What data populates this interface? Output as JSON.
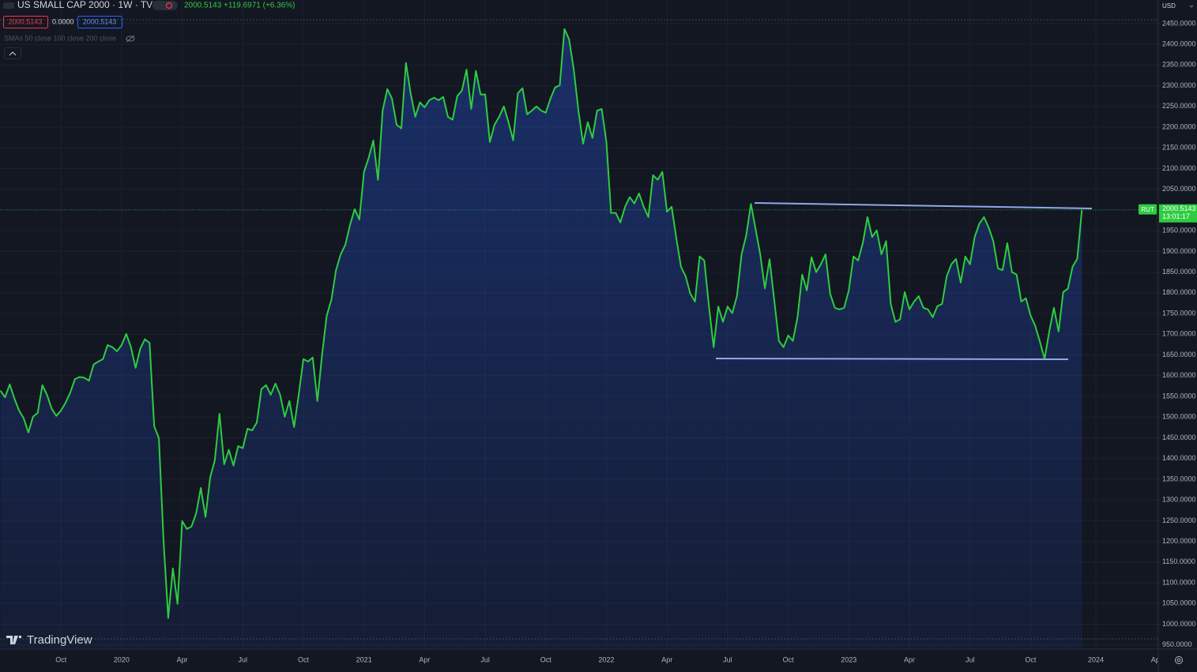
{
  "header": {
    "title": "US SMALL CAP 2000 · 1W · TVC",
    "change": "2000.5143 +119.6971 (+6.36%)",
    "sell": "2000.5143",
    "spread": "0.0000",
    "buy": "2000.5143",
    "indicator": "SMAs 50 close 100 close 200 close",
    "logo": "TradingView",
    "currency": "USD",
    "symbol_tag": "RUT",
    "price_tag": "2000.5143",
    "countdown": "13:01:17"
  },
  "chart_data": {
    "type": "area",
    "color": "#2ecc40",
    "categories": [
      null,
      null,
      null,
      null,
      null,
      null,
      null,
      null,
      null,
      null,
      null,
      null,
      null,
      "Oct",
      null,
      null,
      null,
      null,
      null,
      null,
      null,
      null,
      null,
      null,
      null,
      null,
      "2020",
      null,
      null,
      null,
      null,
      null,
      null,
      null,
      null,
      null,
      null,
      null,
      null,
      "Apr",
      null,
      null,
      null,
      null,
      null,
      null,
      null,
      null,
      null,
      null,
      null,
      null,
      "Jul",
      null,
      null,
      null,
      null,
      null,
      null,
      null,
      null,
      null,
      null,
      null,
      null,
      "Oct",
      null,
      null,
      null,
      null,
      null,
      null,
      null,
      null,
      null,
      null,
      null,
      null,
      "2021",
      null,
      null,
      null,
      null,
      null,
      null,
      null,
      null,
      null,
      null,
      null,
      null,
      "Apr",
      null,
      null,
      null,
      null,
      null,
      null,
      null,
      null,
      null,
      null,
      null,
      null,
      "Jul",
      null,
      null,
      null,
      null,
      null,
      null,
      null,
      null,
      null,
      null,
      null,
      null,
      "Oct",
      null,
      null,
      null,
      null,
      null,
      null,
      null,
      null,
      null,
      null,
      null,
      null,
      "2022",
      null,
      null,
      null,
      null,
      null,
      null,
      null,
      null,
      null,
      null,
      null,
      null,
      "Apr",
      null,
      null,
      null,
      null,
      null,
      null,
      null,
      null,
      null,
      null,
      null,
      null,
      "Jul",
      null,
      null,
      null,
      null,
      null,
      null,
      null,
      null,
      null,
      null,
      null,
      null,
      "Oct",
      null,
      null,
      null,
      null,
      null,
      null,
      null,
      null,
      null,
      null,
      null,
      null,
      "2023",
      null,
      null,
      null,
      null,
      null,
      null,
      null,
      null,
      null,
      null,
      null,
      null,
      "Apr",
      null,
      null,
      null,
      null,
      null,
      null,
      null,
      null,
      null,
      null,
      null,
      null,
      "Jul",
      null,
      null,
      null,
      null,
      null,
      null,
      null,
      null,
      null,
      null,
      null,
      null,
      "Oct",
      null,
      null,
      null,
      null,
      null,
      null,
      null,
      null,
      null,
      null,
      null,
      null,
      null,
      "2024",
      null,
      null,
      null,
      null,
      null,
      null,
      null,
      null,
      null,
      null,
      null,
      null,
      "Apr"
    ],
    "values": [
      1564,
      1548,
      1579,
      1545,
      1516,
      1497,
      1463,
      1501,
      1510,
      1577,
      1554,
      1520,
      1503,
      1516,
      1535,
      1560,
      1592,
      1597,
      1595,
      1588,
      1627,
      1634,
      1640,
      1674,
      1669,
      1659,
      1674,
      1701,
      1669,
      1619,
      1665,
      1688,
      1679,
      1478,
      1449,
      1202,
      1015,
      1135,
      1049,
      1249,
      1230,
      1236,
      1268,
      1329,
      1259,
      1354,
      1396,
      1508,
      1386,
      1421,
      1383,
      1430,
      1425,
      1472,
      1468,
      1487,
      1568,
      1577,
      1554,
      1581,
      1554,
      1501,
      1539,
      1476,
      1554,
      1640,
      1634,
      1644,
      1539,
      1650,
      1745,
      1783,
      1855,
      1893,
      1916,
      1964,
      2002,
      1977,
      2092,
      2126,
      2168,
      2073,
      2240,
      2292,
      2269,
      2206,
      2197,
      2355,
      2282,
      2225,
      2260,
      2248,
      2265,
      2271,
      2265,
      2273,
      2225,
      2218,
      2275,
      2288,
      2339,
      2244,
      2336,
      2279,
      2279,
      2164,
      2206,
      2225,
      2250,
      2212,
      2168,
      2282,
      2294,
      2231,
      2240,
      2250,
      2240,
      2235,
      2269,
      2296,
      2301,
      2437,
      2412,
      2339,
      2240,
      2160,
      2212,
      2174,
      2240,
      2244,
      2164,
      1993,
      1993,
      1970,
      2008,
      2031,
      2016,
      2040,
      2008,
      1983,
      2084,
      2073,
      2092,
      1996,
      2008,
      1932,
      1863,
      1840,
      1798,
      1779,
      1888,
      1878,
      1768,
      1669,
      1767,
      1730,
      1767,
      1751,
      1792,
      1893,
      1939,
      2015,
      1954,
      1893,
      1811,
      1881,
      1783,
      1684,
      1669,
      1697,
      1684,
      1741,
      1844,
      1806,
      1886,
      1850,
      1869,
      1893,
      1798,
      1764,
      1760,
      1764,
      1806,
      1888,
      1878,
      1920,
      1983,
      1935,
      1951,
      1893,
      1925,
      1773,
      1730,
      1736,
      1802,
      1760,
      1779,
      1792,
      1764,
      1760,
      1741,
      1768,
      1773,
      1840,
      1869,
      1882,
      1825,
      1888,
      1869,
      1935,
      1967,
      1983,
      1958,
      1925,
      1859,
      1855,
      1920,
      1850,
      1844,
      1779,
      1787,
      1745,
      1720,
      1682,
      1640,
      1707,
      1764,
      1707,
      1802,
      1810,
      1863,
      1882,
      2000.5143,
      null,
      null,
      null,
      null,
      null,
      null,
      null,
      null,
      null,
      null,
      null,
      null,
      null,
      null,
      null,
      null
    ],
    "ylim": [
      940,
      2507
    ],
    "yticks": [
      {
        "value": 950,
        "label": "950.0000"
      },
      {
        "value": 1000,
        "label": "1000.0000"
      },
      {
        "value": 1050,
        "label": "1050.0000"
      },
      {
        "value": 1100,
        "label": "1100.0000"
      },
      {
        "value": 1150,
        "label": "1150.0000"
      },
      {
        "value": 1200,
        "label": "1200.0000"
      },
      {
        "value": 1250,
        "label": "1250.0000"
      },
      {
        "value": 1300,
        "label": "1300.0000"
      },
      {
        "value": 1350,
        "label": "1350.0000"
      },
      {
        "value": 1400,
        "label": "1400.0000"
      },
      {
        "value": 1450,
        "label": "1450.0000"
      },
      {
        "value": 1500,
        "label": "1500.0000"
      },
      {
        "value": 1550,
        "label": "1550.0000"
      },
      {
        "value": 1600,
        "label": "1600.0000"
      },
      {
        "value": 1650,
        "label": "1650.0000"
      },
      {
        "value": 1700,
        "label": "1700.0000"
      },
      {
        "value": 1750,
        "label": "1750.0000"
      },
      {
        "value": 1800,
        "label": "1800.0000"
      },
      {
        "value": 1850,
        "label": "1850.0000"
      },
      {
        "value": 1900,
        "label": "1900.0000"
      },
      {
        "value": 1950,
        "label": "1950.0000"
      },
      {
        "value": 2000,
        "label": "2000.0000"
      },
      {
        "value": 2050,
        "label": "2050.0000"
      },
      {
        "value": 2100,
        "label": "2100.0000"
      },
      {
        "value": 2150,
        "label": "2150.0000"
      },
      {
        "value": 2200,
        "label": "2200.0000"
      },
      {
        "value": 2250,
        "label": "2250.0000"
      },
      {
        "value": 2300,
        "label": "2300.0000"
      },
      {
        "value": 2350,
        "label": "2350.0000"
      },
      {
        "value": 2400,
        "label": "2400.0000"
      },
      {
        "value": 2450,
        "label": "2450.0000"
      }
    ],
    "grid": true
  }
}
